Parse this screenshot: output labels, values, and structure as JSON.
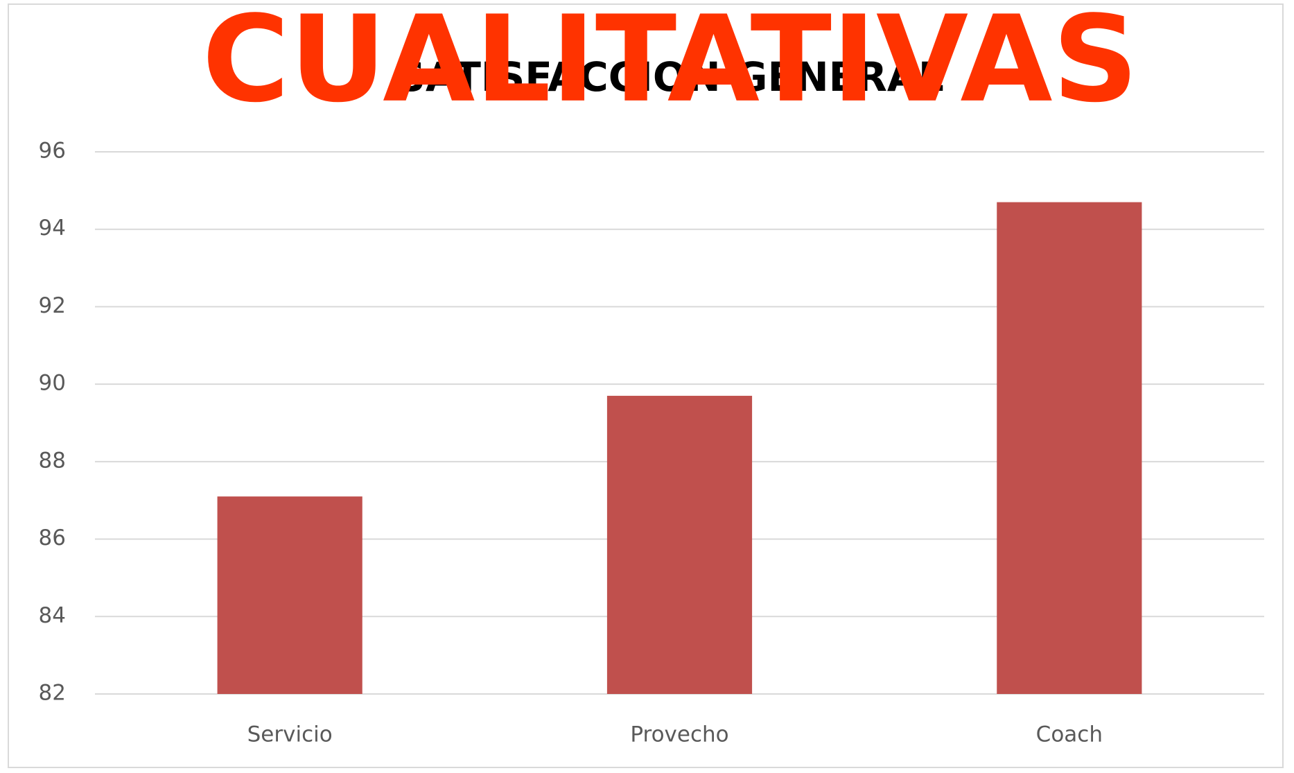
{
  "chart_data": {
    "type": "bar",
    "title": "SATISFACCION GENERAL",
    "annotation": "CUALITATIVAS",
    "categories": [
      "Servicio",
      "Provecho",
      "Coach"
    ],
    "values": [
      87.1,
      89.7,
      94.7
    ],
    "color": "#c0504d",
    "ylim": [
      82,
      96
    ],
    "yticks": [
      82,
      84,
      86,
      88,
      90,
      92,
      94,
      96
    ],
    "grid": true
  }
}
